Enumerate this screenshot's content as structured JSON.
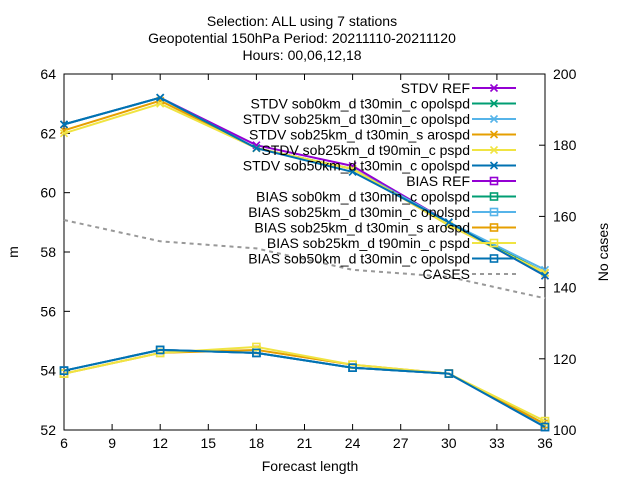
{
  "chart_data": {
    "type": "line",
    "title_lines": [
      "Selection: ALL using     7 stations",
      "Geopotential 150hPa   Period: 20211110-20211120",
      "Hours: 00,06,12,18"
    ],
    "xlabel": "Forecast length",
    "ylabel": "m",
    "y2label": "No cases",
    "xlim": [
      6,
      36
    ],
    "ylim": [
      52,
      64
    ],
    "y2lim": [
      100,
      200
    ],
    "xticks": [
      6,
      9,
      12,
      15,
      18,
      21,
      24,
      27,
      30,
      33,
      36
    ],
    "yticks": [
      52,
      54,
      56,
      58,
      60,
      62,
      64
    ],
    "y2ticks": [
      100,
      120,
      140,
      160,
      180,
      200
    ],
    "legend_position": "top-right",
    "x": [
      6,
      12,
      18,
      24,
      30,
      36
    ],
    "series": [
      {
        "name": "STDV REF",
        "kind": "stdv",
        "color": "#9400d3",
        "marker": "x",
        "values": [
          62.3,
          63.2,
          61.6,
          60.9,
          59.0,
          57.2
        ]
      },
      {
        "name": "STDV sob0km_d t30min_c opolspd",
        "kind": "stdv",
        "color": "#009e73",
        "marker": "x",
        "values": [
          62.3,
          63.2,
          61.5,
          60.8,
          59.0,
          57.3
        ]
      },
      {
        "name": "STDV sob25km_d t30min_c opolspd",
        "kind": "stdv",
        "color": "#56b4e9",
        "marker": "x",
        "values": [
          62.3,
          63.2,
          61.5,
          60.8,
          59.0,
          57.4
        ]
      },
      {
        "name": "STDV sob25km_d t30min_s arospd",
        "kind": "stdv",
        "color": "#e69f00",
        "marker": "x",
        "values": [
          62.1,
          63.1,
          61.5,
          60.8,
          58.9,
          57.3
        ]
      },
      {
        "name": "STDV sob25km_d t90min_c pspd",
        "kind": "stdv",
        "color": "#f0e442",
        "marker": "x",
        "values": [
          62.0,
          63.0,
          61.5,
          60.8,
          58.9,
          57.3
        ]
      },
      {
        "name": "STDV sob50km_d t30min_c opolspd",
        "kind": "stdv",
        "color": "#0072b2",
        "marker": "x",
        "values": [
          62.3,
          63.2,
          61.5,
          60.7,
          59.0,
          57.2
        ]
      },
      {
        "name": "BIAS REF",
        "kind": "bias",
        "color": "#9400d3",
        "marker": "square",
        "values": [
          54.0,
          54.7,
          54.6,
          54.1,
          53.9,
          52.1
        ]
      },
      {
        "name": "BIAS sob0km_d t30min_c opolspd",
        "kind": "bias",
        "color": "#009e73",
        "marker": "square",
        "values": [
          54.0,
          54.7,
          54.6,
          54.1,
          53.9,
          52.2
        ]
      },
      {
        "name": "BIAS sob25km_d t30min_c opolspd",
        "kind": "bias",
        "color": "#56b4e9",
        "marker": "square",
        "values": [
          54.0,
          54.7,
          54.6,
          54.1,
          53.9,
          52.1
        ]
      },
      {
        "name": "BIAS sob25km_d t30min_s arospd",
        "kind": "bias",
        "color": "#e69f00",
        "marker": "square",
        "values": [
          53.9,
          54.6,
          54.7,
          54.2,
          53.9,
          52.2
        ]
      },
      {
        "name": "BIAS sob25km_d t90min_c pspd",
        "kind": "bias",
        "color": "#f0e442",
        "marker": "square",
        "values": [
          53.9,
          54.6,
          54.8,
          54.2,
          53.9,
          52.3
        ]
      },
      {
        "name": "BIAS sob50km_d t30min_c opolspd",
        "kind": "bias",
        "color": "#0072b2",
        "marker": "square",
        "values": [
          54.0,
          54.7,
          54.6,
          54.1,
          53.9,
          52.1
        ]
      },
      {
        "name": "CASES",
        "kind": "cases",
        "color": "#999999",
        "marker": "none",
        "axis": "y2",
        "values": [
          159,
          153,
          151,
          145,
          143,
          137
        ]
      }
    ]
  }
}
